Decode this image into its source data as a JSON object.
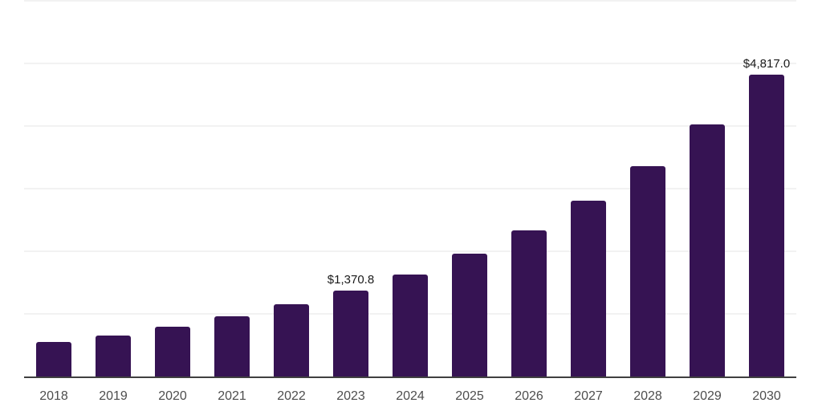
{
  "chart_data": {
    "type": "bar",
    "title": "",
    "xlabel": "",
    "ylabel": "",
    "categories": [
      "2018",
      "2019",
      "2020",
      "2021",
      "2022",
      "2023",
      "2024",
      "2025",
      "2026",
      "2027",
      "2028",
      "2029",
      "2030"
    ],
    "values": [
      550,
      655,
      795,
      960,
      1150,
      1370.8,
      1630,
      1960,
      2330,
      2805,
      3360,
      4025,
      4817
    ],
    "data_labels": [
      {
        "category": "2023",
        "text": "$1,370.8"
      },
      {
        "category": "2030",
        "text": "$4,817.0"
      }
    ],
    "ylim": [
      0,
      6000
    ],
    "gridline_interval": 1000,
    "grid": "horizontal-only",
    "legend_position": "none",
    "y_axis_tick_labels_visible": false,
    "colors": {
      "bar": "#361353",
      "gridline": "#f2f2f2",
      "axis_line": "#404040",
      "tick_label": "#4d4d4d",
      "data_label": "#1a1a1a"
    }
  }
}
